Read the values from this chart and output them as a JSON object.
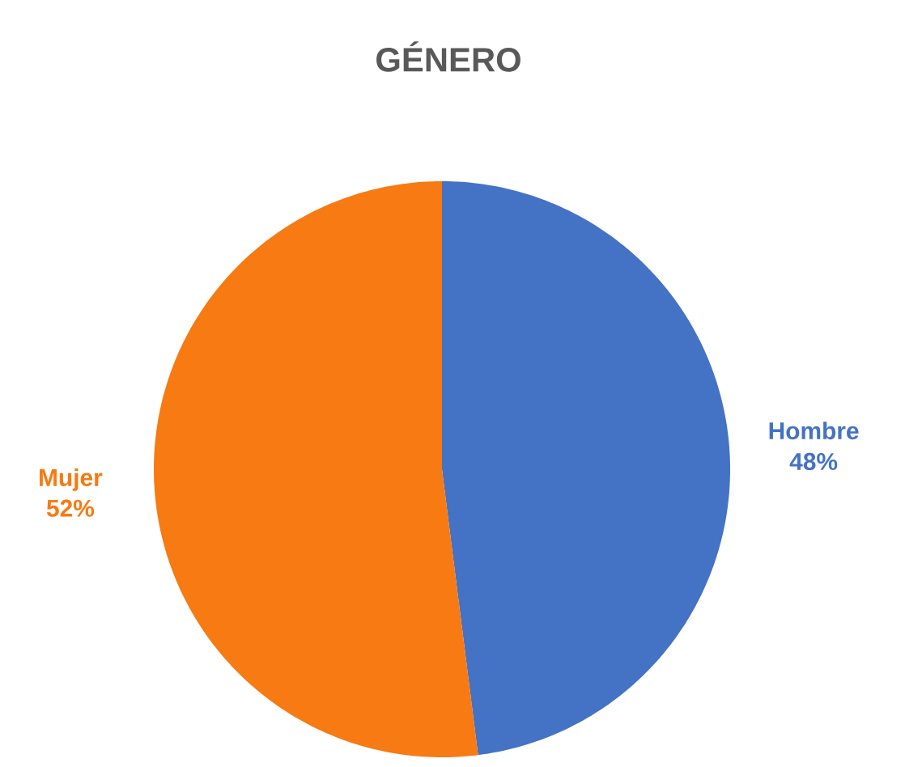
{
  "chart_data": {
    "type": "pie",
    "title": "GÉNERO",
    "categories": [
      "Hombre",
      "Mujer"
    ],
    "values": [
      48,
      52
    ],
    "value_labels": [
      "48%",
      "52%"
    ],
    "colors": [
      "#4472c4",
      "#f77a12"
    ]
  }
}
